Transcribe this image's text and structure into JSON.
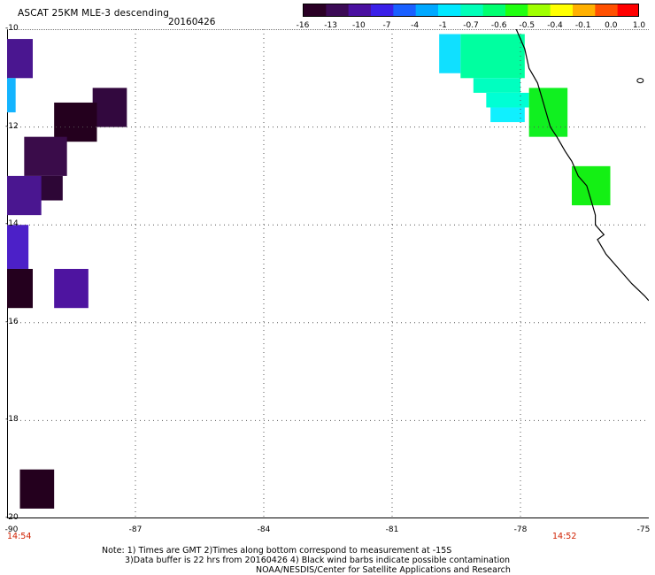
{
  "header": {
    "title": "ASCAT 25KM MLE-3 descending",
    "date": "20160426"
  },
  "colorbar": {
    "ticks": [
      "-16",
      "-13",
      "-10",
      "-7",
      "-4",
      "-1",
      "-0.7",
      "-0.6",
      "-0.5",
      "-0.4",
      "-0.1",
      "0.0",
      "1.0"
    ],
    "colors": [
      "#2a0025",
      "#3b0a55",
      "#4a10a0",
      "#3a20e8",
      "#1a60ff",
      "#00a8ff",
      "#00e8ff",
      "#00ffb8",
      "#00ff70",
      "#20ff10",
      "#a0ff00",
      "#ffff00",
      "#ffb000",
      "#ff5000",
      "#ff0000"
    ]
  },
  "axes": {
    "y_labels": [
      "-10",
      "-12",
      "-14",
      "-16",
      "-18",
      "-20"
    ],
    "x_labels": [
      "-90",
      "-87",
      "-84",
      "-81",
      "-78",
      "-75"
    ],
    "lon_range": [
      -90,
      -75
    ],
    "lat_range": [
      -20,
      -10
    ],
    "grid": "dotted"
  },
  "times": {
    "left": "14:54",
    "right": "14:52"
  },
  "cells": [
    {
      "lon0": -90.0,
      "lon1": -89.4,
      "lat0": -10.2,
      "lat1": -11.0,
      "color": "#4a1690"
    },
    {
      "lon0": -90.0,
      "lon1": -89.8,
      "lat0": -11.0,
      "lat1": -11.7,
      "color": "#14b4ff"
    },
    {
      "lon0": -88.0,
      "lon1": -87.2,
      "lat0": -11.2,
      "lat1": -12.0,
      "color": "#32083e"
    },
    {
      "lon0": -88.9,
      "lon1": -87.9,
      "lat0": -11.5,
      "lat1": -12.3,
      "color": "#24001e"
    },
    {
      "lon0": -89.6,
      "lon1": -88.6,
      "lat0": -12.2,
      "lat1": -13.0,
      "color": "#3a0c4a"
    },
    {
      "lon0": -89.6,
      "lon1": -88.7,
      "lat0": -13.0,
      "lat1": -13.5,
      "color": "#2d0636"
    },
    {
      "lon0": -90.0,
      "lon1": -89.2,
      "lat0": -13.0,
      "lat1": -13.8,
      "color": "#4a1690"
    },
    {
      "lon0": -90.0,
      "lon1": -89.5,
      "lat0": -14.0,
      "lat1": -14.9,
      "color": "#4c20c8"
    },
    {
      "lon0": -90.0,
      "lon1": -89.4,
      "lat0": -14.9,
      "lat1": -15.7,
      "color": "#24001e"
    },
    {
      "lon0": -88.9,
      "lon1": -88.1,
      "lat0": -14.9,
      "lat1": -15.7,
      "color": "#4e14a0"
    },
    {
      "lon0": -89.7,
      "lon1": -88.9,
      "lat0": -19.0,
      "lat1": -19.8,
      "color": "#24001e"
    },
    {
      "lon0": -79.9,
      "lon1": -79.4,
      "lat0": -10.1,
      "lat1": -10.9,
      "color": "#10e0ff"
    },
    {
      "lon0": -79.4,
      "lon1": -77.9,
      "lat0": -10.1,
      "lat1": -11.0,
      "color": "#00ffa0"
    },
    {
      "lon0": -79.1,
      "lon1": -78.0,
      "lat0": -11.0,
      "lat1": -11.3,
      "color": "#00ffc0"
    },
    {
      "lon0": -78.8,
      "lon1": -77.8,
      "lat0": -11.3,
      "lat1": -11.6,
      "color": "#00ffd4"
    },
    {
      "lon0": -78.7,
      "lon1": -77.9,
      "lat0": -11.6,
      "lat1": -11.9,
      "color": "#10f0ff"
    },
    {
      "lon0": -77.8,
      "lon1": -76.9,
      "lat0": -11.2,
      "lat1": -12.2,
      "color": "#10f020"
    },
    {
      "lon0": -76.8,
      "lon1": -75.9,
      "lat0": -12.8,
      "lat1": -13.6,
      "color": "#14f014"
    }
  ],
  "coastline": [
    [
      -78.1,
      -10.0
    ],
    [
      -77.9,
      -10.4
    ],
    [
      -77.8,
      -10.8
    ],
    [
      -77.6,
      -11.1
    ],
    [
      -77.5,
      -11.4
    ],
    [
      -77.4,
      -11.7
    ],
    [
      -77.3,
      -12.0
    ],
    [
      -77.15,
      -12.2
    ],
    [
      -76.95,
      -12.5
    ],
    [
      -76.8,
      -12.7
    ],
    [
      -76.65,
      -13.0
    ],
    [
      -76.45,
      -13.2
    ],
    [
      -76.35,
      -13.5
    ],
    [
      -76.25,
      -13.8
    ],
    [
      -76.25,
      -14.0
    ],
    [
      -76.05,
      -14.2
    ],
    [
      -76.2,
      -14.3
    ],
    [
      -76.0,
      -14.6
    ],
    [
      -75.7,
      -14.9
    ],
    [
      -75.4,
      -15.2
    ],
    [
      -75.1,
      -15.45
    ],
    [
      -75.0,
      -15.55
    ]
  ],
  "islands": [
    [
      -75.2,
      -11.05
    ]
  ],
  "notes": [
    "Note: 1) Times are GMT 2)Times along bottom correspond to measurement at -15S",
    "3)Data buffer is 22 hrs from 20160426 4) Black wind barbs indicate possible contamination",
    "NOAA/NESDIS/Center for Satellite Applications and Research"
  ]
}
